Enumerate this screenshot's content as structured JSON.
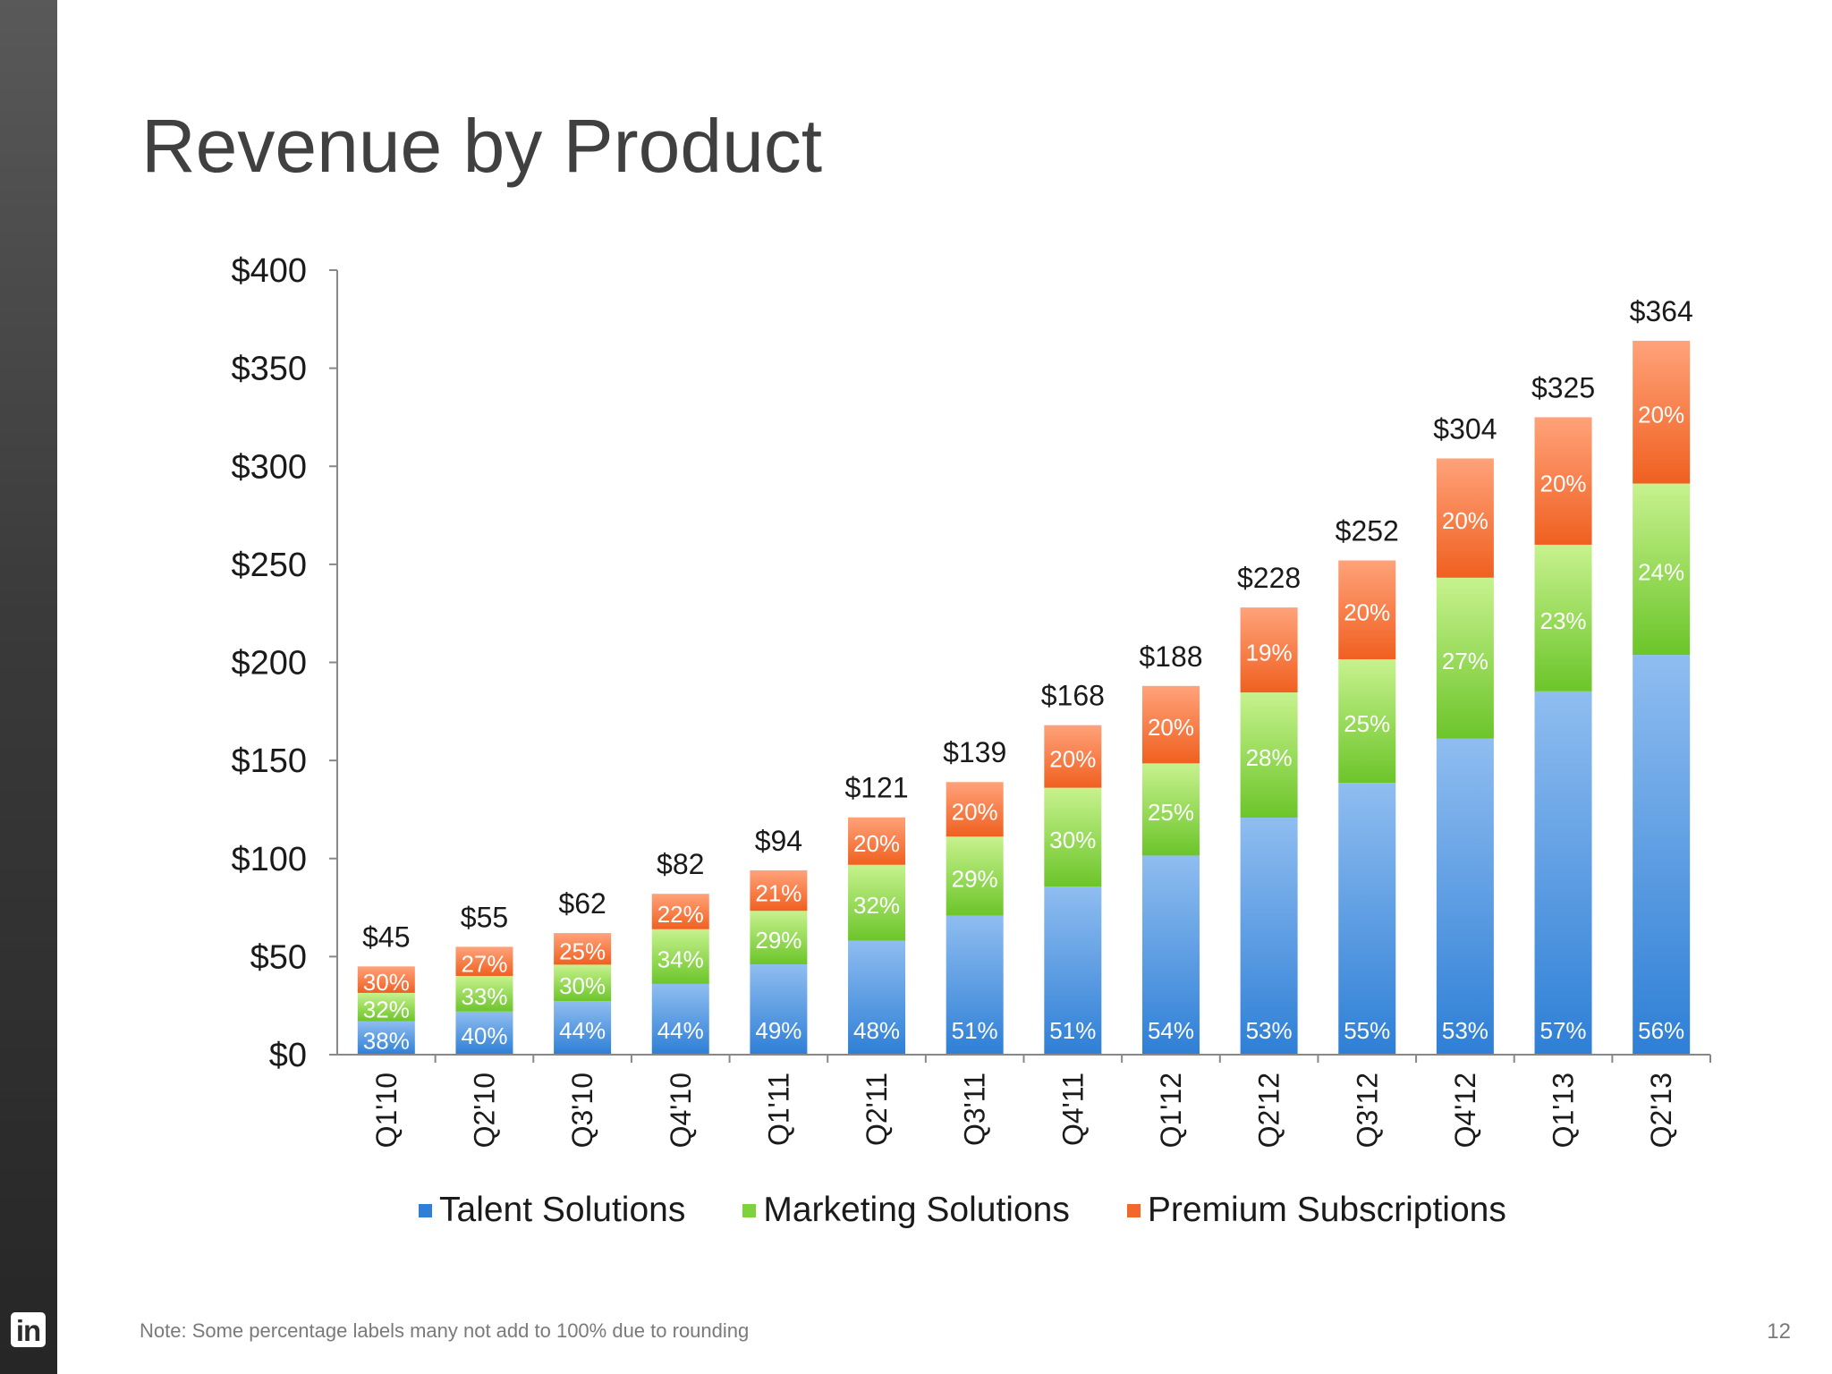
{
  "slide": {
    "title": "Revenue by Product",
    "note": "Note: Some percentage labels many not add to 100% due to rounding",
    "page_number": "12",
    "logo_text": "in"
  },
  "legend": {
    "items": [
      {
        "label": "Talent Solutions",
        "color": "#2e7fd6"
      },
      {
        "label": "Marketing Solutions",
        "color": "#7ed33c"
      },
      {
        "label": "Premium Subscriptions",
        "color": "#f2682a"
      }
    ]
  },
  "chart_data": {
    "type": "bar",
    "stacked": true,
    "categories": [
      "Q1'10",
      "Q2'10",
      "Q3'10",
      "Q4'10",
      "Q1'11",
      "Q2'11",
      "Q3'11",
      "Q4'11",
      "Q1'12",
      "Q2'12",
      "Q3'12",
      "Q4'12",
      "Q1'13",
      "Q2'13"
    ],
    "totals": [
      45,
      55,
      62,
      82,
      94,
      121,
      139,
      168,
      188,
      228,
      252,
      304,
      325,
      364
    ],
    "total_labels": [
      "$45",
      "$55",
      "$62",
      "$82",
      "$94",
      "$121",
      "$139",
      "$168",
      "$188",
      "$228",
      "$252",
      "$304",
      "$325",
      "$364"
    ],
    "series": [
      {
        "name": "Talent Solutions",
        "color": "#2e7fd6",
        "color_light": "#8fbdf0",
        "percent": [
          38,
          40,
          44,
          44,
          49,
          48,
          51,
          51,
          54,
          53,
          55,
          53,
          57,
          56
        ]
      },
      {
        "name": "Marketing Solutions",
        "color": "#6cc52a",
        "color_light": "#c7f28e",
        "percent": [
          32,
          33,
          30,
          34,
          29,
          32,
          29,
          30,
          25,
          28,
          25,
          27,
          23,
          24
        ]
      },
      {
        "name": "Premium Subscriptions",
        "color": "#f06020",
        "color_light": "#ffa27a",
        "percent": [
          30,
          27,
          25,
          22,
          21,
          20,
          20,
          20,
          20,
          19,
          20,
          20,
          20,
          20
        ]
      }
    ],
    "yticks": [
      "$0",
      "$50",
      "$100",
      "$150",
      "$200",
      "$250",
      "$300",
      "$350",
      "$400"
    ],
    "ylim": [
      0,
      400
    ],
    "grid": false,
    "legend_position": "bottom"
  }
}
